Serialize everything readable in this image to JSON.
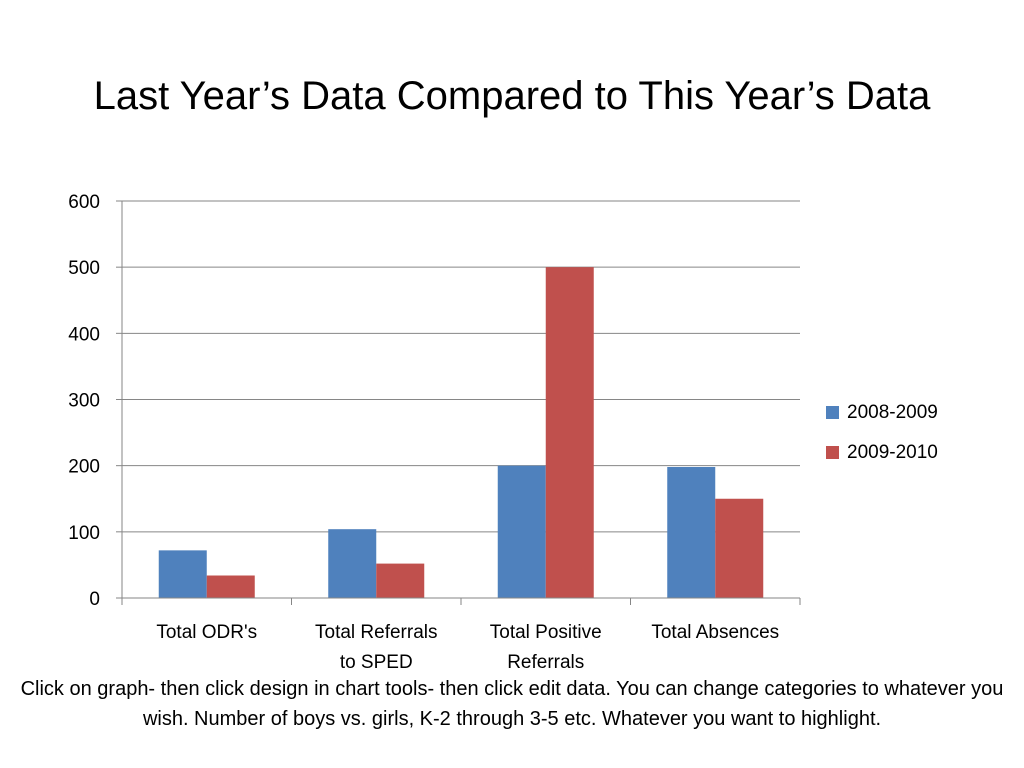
{
  "slide": {
    "title": "Last Year’s Data Compared to This Year’s Data",
    "footnote": "Click on graph- then click design in chart tools- then click edit data. You can change categories to whatever you wish. Number of boys vs. girls, K-2 through 3-5 etc.  Whatever you want to highlight."
  },
  "chart_data": {
    "type": "bar",
    "title": "",
    "xlabel": "",
    "ylabel": "",
    "categories": [
      [
        "Total ODR's"
      ],
      [
        "Total Referrals",
        "to SPED"
      ],
      [
        "Total Positive",
        "Referrals"
      ],
      [
        "Total Absences"
      ]
    ],
    "series": [
      {
        "name": "2008-2009",
        "color": "#4F81BD",
        "values": [
          72,
          104,
          200,
          198
        ]
      },
      {
        "name": "2009-2010",
        "color": "#C0504D",
        "values": [
          34,
          52,
          500,
          150
        ]
      }
    ],
    "ylim": [
      0,
      600
    ],
    "yticks": [
      0,
      100,
      200,
      300,
      400,
      500,
      600
    ],
    "grid": true,
    "legend": "right"
  }
}
